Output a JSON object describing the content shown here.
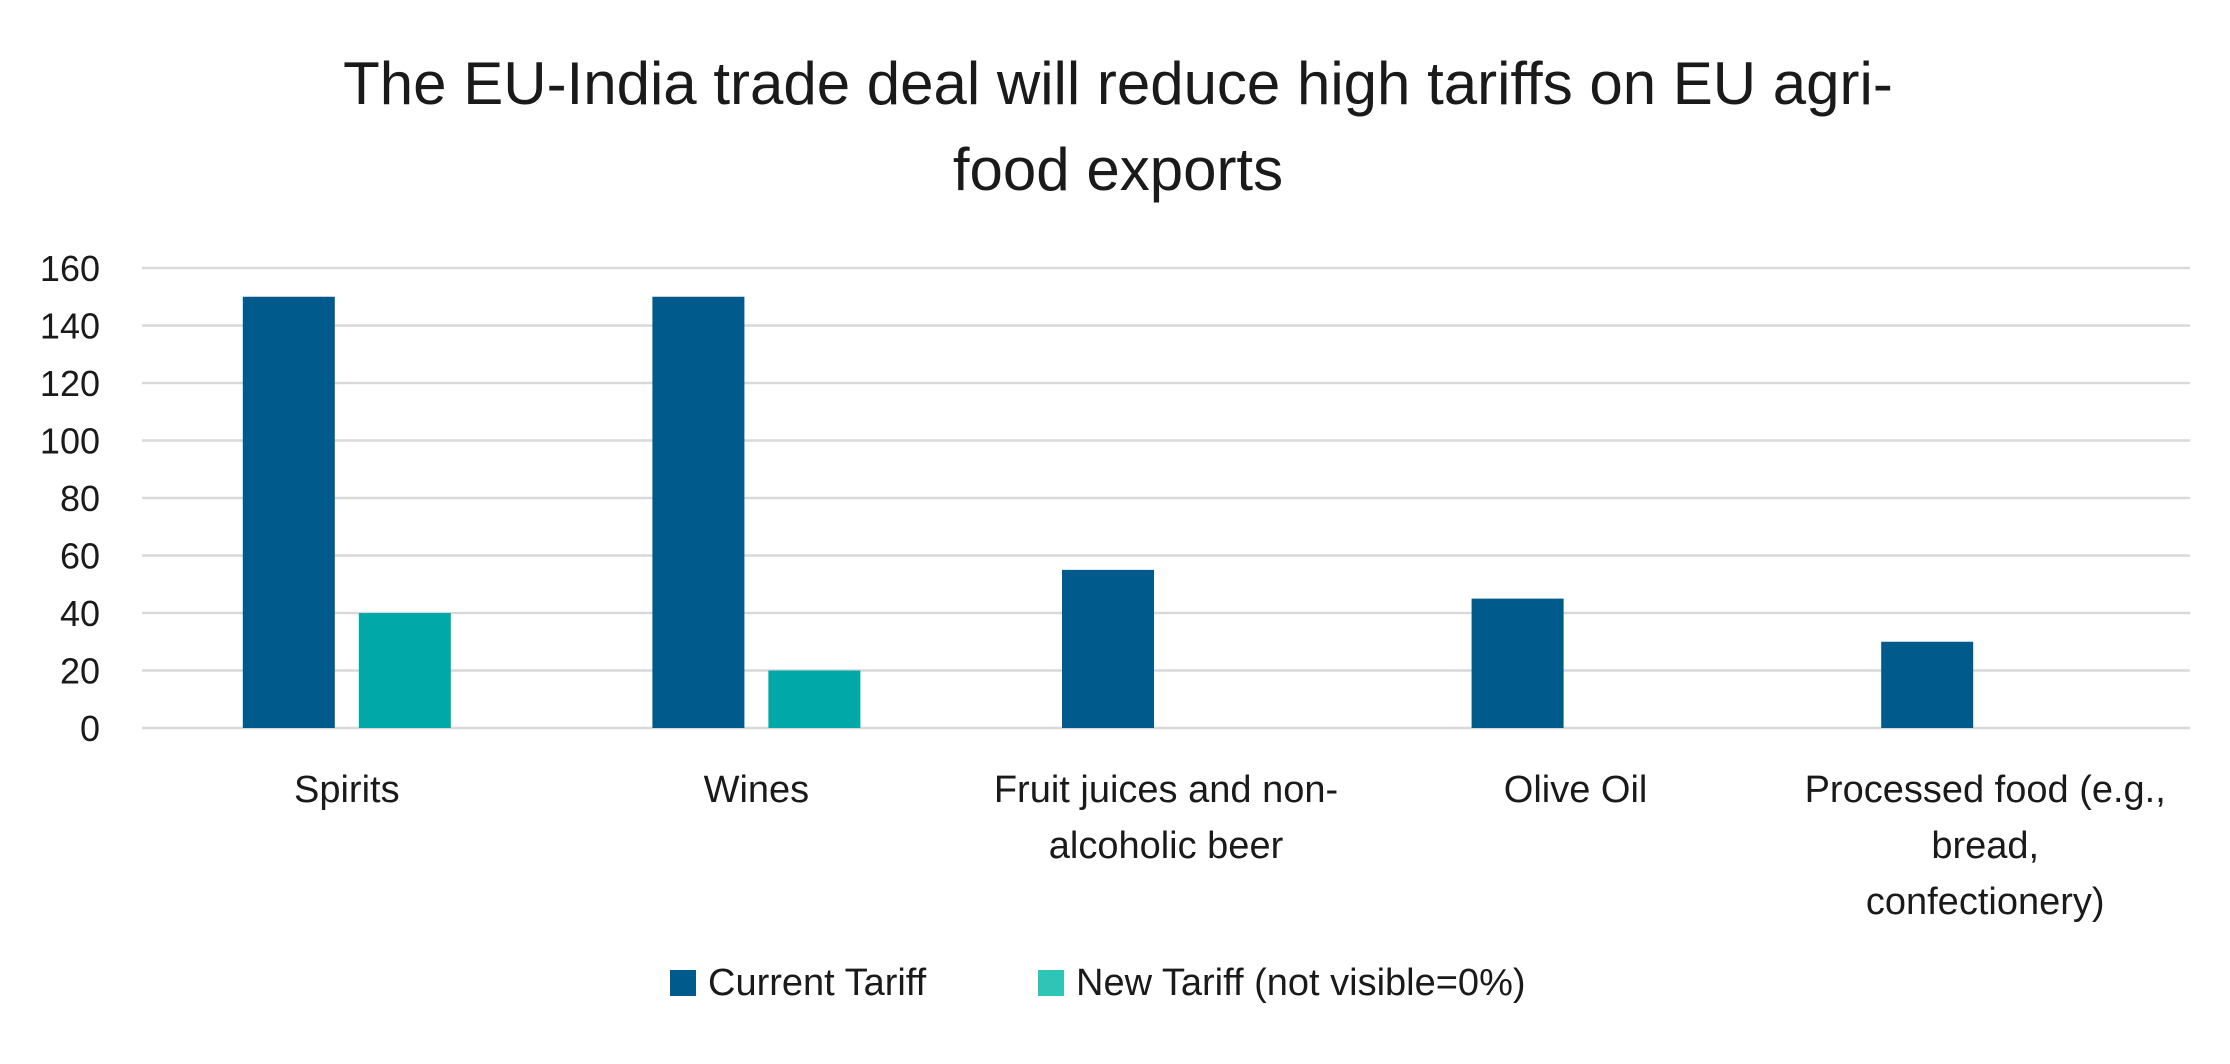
{
  "chart_data": {
    "type": "bar",
    "title": "The EU-India trade deal will reduce high tariffs on EU agri-food exports",
    "title_lines": [
      "The EU-India trade deal will reduce high tariffs on EU agri-",
      "food exports"
    ],
    "categories": [
      "Spirits",
      "Wines",
      "Fruit juices and non-alcoholic beer",
      "Olive Oil",
      "Processed food (e.g., bread, confectionery)"
    ],
    "category_lines": [
      [
        "Spirits"
      ],
      [
        "Wines"
      ],
      [
        "Fruit juices and non-",
        "alcoholic beer"
      ],
      [
        "Olive Oil"
      ],
      [
        "Processed food (e.g.,",
        "bread,",
        "confectionery)"
      ]
    ],
    "series": [
      {
        "name": "Current Tariff",
        "color": "#005a8b",
        "values": [
          150,
          150,
          55,
          45,
          30
        ]
      },
      {
        "name": "New Tariff (not visible=0%)",
        "color": "#00a8a8",
        "values": [
          40,
          20,
          0,
          0,
          0
        ]
      }
    ],
    "legend_colors": [
      "#005a8b",
      "#2ec4b6"
    ],
    "ylim": [
      0,
      160
    ],
    "yticks": [
      0,
      20,
      40,
      60,
      80,
      100,
      120,
      140,
      160
    ],
    "xlabel": "",
    "ylabel": "",
    "grid": true,
    "legend_position": "bottom"
  }
}
